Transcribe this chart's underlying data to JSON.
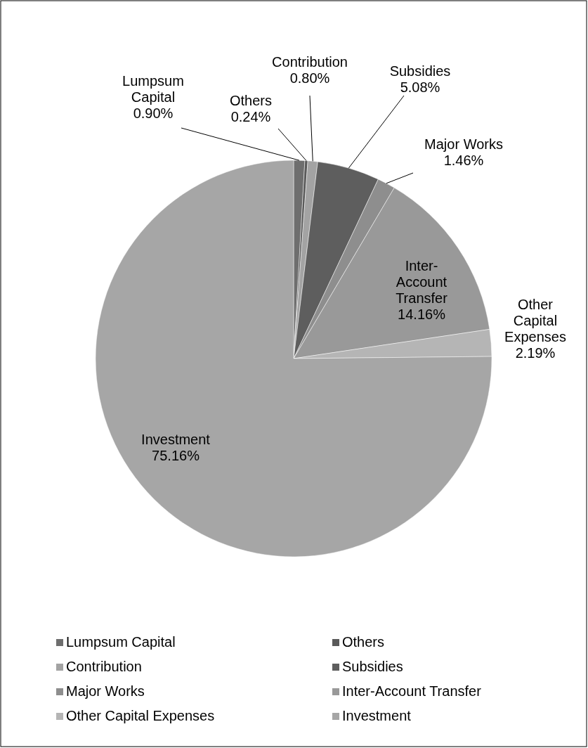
{
  "chart_data": {
    "type": "pie",
    "categories": [
      "Lumpsum Capital",
      "Others",
      "Contribution",
      "Subsidies",
      "Major Works",
      "Inter-Account Transfer",
      "Other Capital Expenses",
      "Investment"
    ],
    "values": [
      0.9,
      0.24,
      0.8,
      5.08,
      1.46,
      14.16,
      2.19,
      75.16
    ],
    "value_labels": [
      "0.90%",
      "0.24%",
      "0.80%",
      "5.08%",
      "1.46%",
      "14.16%",
      "2.19%",
      "75.16%"
    ],
    "colors": [
      "#6e6e6e",
      "#5a5a5a",
      "#a3a3a3",
      "#5e5e5e",
      "#8e8e8e",
      "#999999",
      "#b5b5b5",
      "#a6a6a6"
    ],
    "legend": "bottom"
  }
}
